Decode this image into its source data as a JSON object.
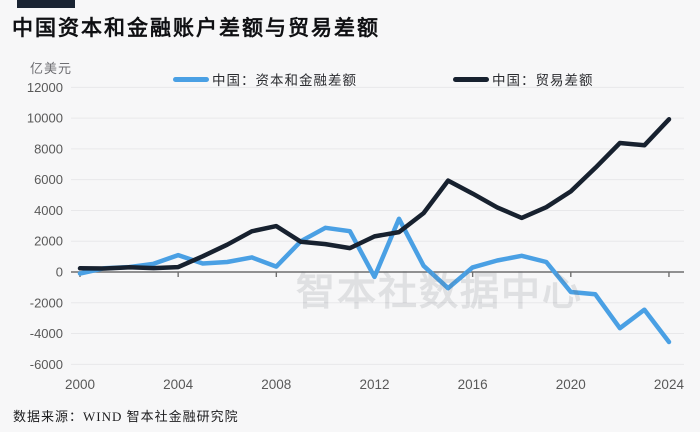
{
  "header": {
    "title": "中国资本和金融账户差额与贸易差额"
  },
  "y_axis_unit": "亿美元",
  "legend": {
    "capital_label": "中国：资本和金融差额",
    "trade_label": "中国：贸易差额"
  },
  "watermark": "智本社数据中心",
  "source": "数据来源：WIND 智本社金融研究院",
  "colors": {
    "background": "#f7f7f8",
    "accent_bar": "#1a2433",
    "series_capital": "#4aa0e4",
    "series_trade": "#17212f",
    "gridline": "#e8e8ea",
    "zero_axis": "#6f6f6f",
    "tick_label": "#595959",
    "watermark": "#e4e5e8"
  },
  "chart_data": {
    "type": "line",
    "title": "中国资本和金融账户差额与贸易差额",
    "ylabel": "亿美元",
    "xlabel": "",
    "grid": true,
    "legend_position": "top",
    "ylim": [
      -6000,
      12000
    ],
    "y_ticks": [
      12000,
      10000,
      8000,
      6000,
      4000,
      2000,
      0,
      -2000,
      -4000,
      -6000
    ],
    "x_ticks": [
      2000,
      2004,
      2008,
      2012,
      2016,
      2020,
      2024
    ],
    "x": [
      2000,
      2001,
      2002,
      2003,
      2004,
      2005,
      2006,
      2007,
      2008,
      2009,
      2010,
      2011,
      2012,
      2013,
      2014,
      2015,
      2016,
      2017,
      2018,
      2019,
      2020,
      2021,
      2022,
      2023,
      2024
    ],
    "series": [
      {
        "name": "中国：资本和金融差额",
        "color": "#4aa0e4",
        "values": [
          -100,
          250,
          320,
          530,
          1100,
          550,
          650,
          950,
          350,
          2000,
          2870,
          2650,
          -320,
          3460,
          400,
          -1050,
          300,
          750,
          1050,
          650,
          -1300,
          -1450,
          -3650,
          -2450,
          -4550
        ]
      },
      {
        "name": "中国：贸易差额",
        "color": "#17212f",
        "values": [
          241,
          226,
          304,
          255,
          321,
          1020,
          1775,
          2643,
          2981,
          1961,
          1815,
          1551,
          2311,
          2590,
          3825,
          5939,
          5097,
          4196,
          3518,
          4211,
          5240,
          6764,
          8380,
          8232,
          9922
        ]
      }
    ]
  }
}
